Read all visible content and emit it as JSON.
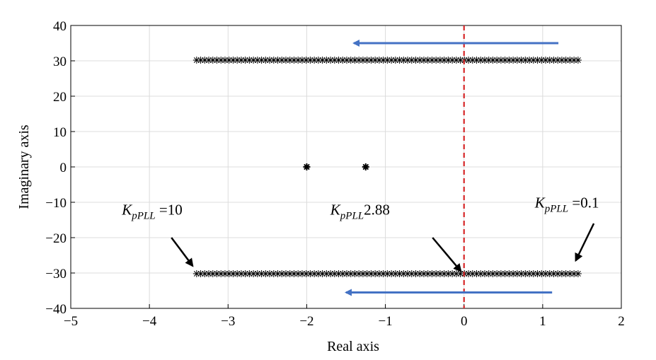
{
  "chart_data": {
    "type": "scatter",
    "xlabel": "Real axis",
    "ylabel": "Imaginary axis",
    "xlim": [
      -5,
      2
    ],
    "ylim": [
      -40,
      40
    ],
    "xticks": [
      -5,
      -4,
      -3,
      -2,
      -1,
      0,
      1,
      2
    ],
    "yticks": [
      -40,
      -30,
      -20,
      -10,
      0,
      10,
      20,
      30,
      40
    ],
    "xtick_labels": [
      "−5",
      "−4",
      "−3",
      "−2",
      "−1",
      "0",
      "1",
      "2"
    ],
    "ytick_labels": [
      "−40",
      "−30",
      "−20",
      "−10",
      "0",
      "10",
      "20",
      "30",
      "40"
    ],
    "grid": true,
    "series": [
      {
        "marker": "*",
        "color": "#000000",
        "x_range": [
          -3.4,
          1.45
        ],
        "count": 95,
        "y": 30.2
      },
      {
        "marker": "*",
        "color": "#000000",
        "x_range": [
          -3.4,
          1.45
        ],
        "count": 95,
        "y": -30.2
      },
      {
        "marker": "*",
        "color": "#000000",
        "points": [
          [
            -2.0,
            0
          ],
          [
            -1.25,
            0
          ]
        ]
      }
    ],
    "reference_line": {
      "x": 0,
      "style": "dashed",
      "color": "#d62728"
    },
    "direction_arrows": [
      {
        "from": [
          1.2,
          35
        ],
        "to": [
          -1.4,
          35
        ],
        "color": "#4472c4"
      },
      {
        "from": [
          1.12,
          -35.5
        ],
        "to": [
          -1.5,
          -35.5
        ],
        "color": "#4472c4"
      }
    ],
    "annotations": [
      {
        "k": "K",
        "sub": "pPLL",
        "value": " =10",
        "text_at": [
          -4.35,
          -13.5
        ],
        "arrow_from": [
          -3.72,
          -20
        ],
        "arrow_to": [
          -3.45,
          -28
        ]
      },
      {
        "k": "K",
        "sub": "pPLL",
        "value": "2.88",
        "text_at": [
          -1.7,
          -13.5
        ],
        "arrow_from": [
          -0.4,
          -20
        ],
        "arrow_to": [
          -0.04,
          -29.5
        ]
      },
      {
        "k": "K",
        "sub": "pPLL",
        "value": " =0.1",
        "text_at": [
          0.9,
          -11.5
        ],
        "arrow_from": [
          1.65,
          -16
        ],
        "arrow_to": [
          1.42,
          -26.5
        ]
      }
    ]
  }
}
